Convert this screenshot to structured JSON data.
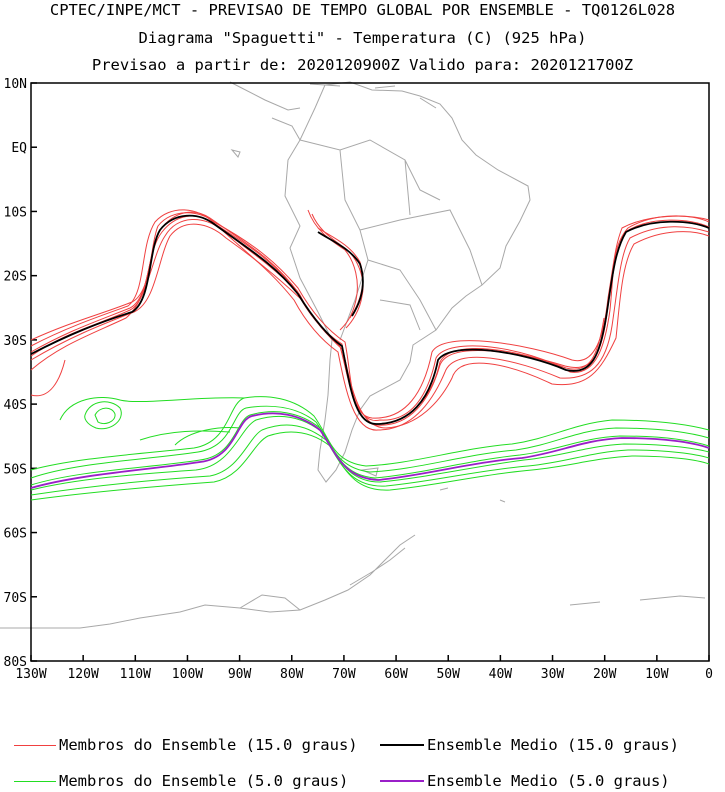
{
  "header": {
    "line1": "CPTEC/INPE/MCT - PREVISAO DE TEMPO GLOBAL POR ENSEMBLE - TQ0126L028",
    "line2": "Diagrama \"Spaguetti\" - Temperatura (C) (925 hPa)",
    "line3": "Previsao a partir de: 2020120900Z  Valido para: 2020121700Z"
  },
  "map": {
    "lat_labels": [
      "10N",
      "EQ",
      "10S",
      "20S",
      "30S",
      "40S",
      "50S",
      "60S",
      "70S",
      "80S"
    ],
    "lon_labels": [
      "130W",
      "120W",
      "110W",
      "100W",
      "90W",
      "80W",
      "70W",
      "60W",
      "50W",
      "40W",
      "30W",
      "20W",
      "10W",
      "0"
    ],
    "colors": {
      "coast": "#a8a8a8",
      "member_15": "#f04040",
      "mean_15": "#000000",
      "member_5": "#22dd22",
      "mean_5": "#9a1fc8"
    }
  },
  "legend": [
    {
      "label": "Membros do Ensemble (15.0 graus)",
      "color": "#f04040"
    },
    {
      "label": "Ensemble Medio (15.0 graus)",
      "color": "#000000"
    },
    {
      "label": "Membros do Ensemble (5.0 graus)",
      "color": "#22dd22"
    },
    {
      "label": "Ensemble Medio (5.0 graus)",
      "color": "#9a1fc8"
    }
  ]
}
